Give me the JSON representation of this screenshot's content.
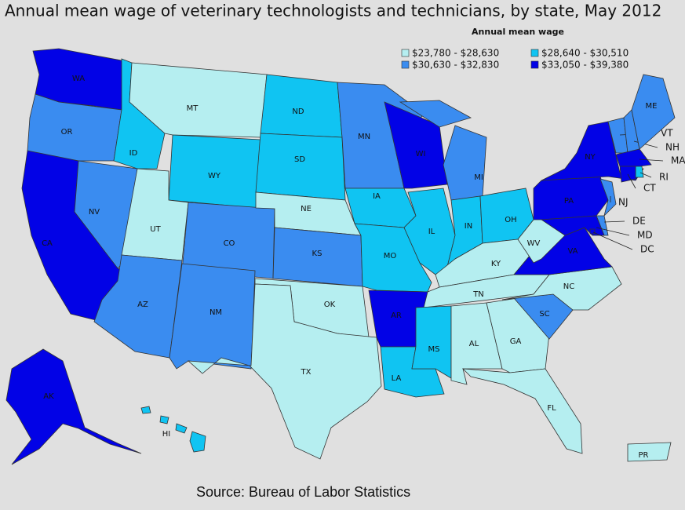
{
  "title": "Annual mean wage of veterinary technologists and technicians, by state, May 2012",
  "legend": {
    "title": "Annual mean wage",
    "items": [
      {
        "label": "$23,780 - $28,630",
        "color": "#b5eef0"
      },
      {
        "label": "$28,640 - $30,510",
        "color": "#10c4f2"
      },
      {
        "label": "$30,630 - $32,830",
        "color": "#3a8cf0"
      },
      {
        "label": "$33,050 - $39,380",
        "color": "#0202e6"
      }
    ]
  },
  "states": [
    {
      "label": "WA",
      "class": 3
    },
    {
      "label": "OR",
      "class": 2
    },
    {
      "label": "CA",
      "class": 3
    },
    {
      "label": "NV",
      "class": 2
    },
    {
      "label": "ID",
      "class": 1
    },
    {
      "label": "MT",
      "class": 0
    },
    {
      "label": "WY",
      "class": 1
    },
    {
      "label": "UT",
      "class": 0
    },
    {
      "label": "CO",
      "class": 2
    },
    {
      "label": "AZ",
      "class": 2
    },
    {
      "label": "NM",
      "class": 2
    },
    {
      "label": "ND",
      "class": 1
    },
    {
      "label": "SD",
      "class": 1
    },
    {
      "label": "NE",
      "class": 0
    },
    {
      "label": "KS",
      "class": 2
    },
    {
      "label": "OK",
      "class": 0
    },
    {
      "label": "TX",
      "class": 0
    },
    {
      "label": "MN",
      "class": 2
    },
    {
      "label": "IA",
      "class": 1
    },
    {
      "label": "MO",
      "class": 1
    },
    {
      "label": "AR",
      "class": 3
    },
    {
      "label": "LA",
      "class": 1
    },
    {
      "label": "WI",
      "class": 3
    },
    {
      "label": "IL",
      "class": 1
    },
    {
      "label": "MI",
      "class": 2
    },
    {
      "label": "IN",
      "class": 1
    },
    {
      "label": "OH",
      "class": 1
    },
    {
      "label": "KY",
      "class": 0
    },
    {
      "label": "TN",
      "class": 0
    },
    {
      "label": "MS",
      "class": 1
    },
    {
      "label": "AL",
      "class": 0
    },
    {
      "label": "GA",
      "class": 0
    },
    {
      "label": "FL",
      "class": 0
    },
    {
      "label": "SC",
      "class": 2
    },
    {
      "label": "NC",
      "class": 0
    },
    {
      "label": "VA",
      "class": 3
    },
    {
      "label": "WV",
      "class": 0
    },
    {
      "label": "PA",
      "class": 3
    },
    {
      "label": "NY",
      "class": 3
    },
    {
      "label": "VT",
      "class": 2
    },
    {
      "label": "NH",
      "class": 2
    },
    {
      "label": "ME",
      "class": 2
    },
    {
      "label": "MA",
      "class": 3
    },
    {
      "label": "RI",
      "class": 1
    },
    {
      "label": "CT",
      "class": 3
    },
    {
      "label": "NJ",
      "class": 2
    },
    {
      "label": "DE",
      "class": 2
    },
    {
      "label": "MD",
      "class": 3
    },
    {
      "label": "DC",
      "class": 3
    },
    {
      "label": "AK",
      "class": 3
    },
    {
      "label": "HI",
      "class": 1
    },
    {
      "label": "PR",
      "class": 0
    }
  ],
  "source": "Source:  Bureau of Labor Statistics"
}
